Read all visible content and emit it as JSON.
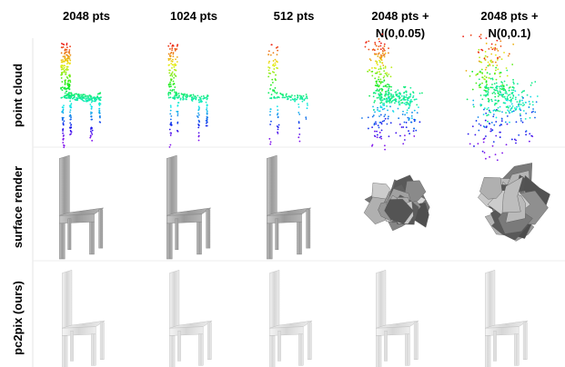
{
  "columns": [
    [
      "2048 pts"
    ],
    [
      "1024 pts"
    ],
    [
      "512 pts"
    ],
    [
      "2048 pts +",
      "N(0,0.05)"
    ],
    [
      "2048 pts +",
      "N(0,0.1)"
    ]
  ],
  "rows": [
    "point cloud",
    "surface render",
    "pc2pix (ours)"
  ]
}
